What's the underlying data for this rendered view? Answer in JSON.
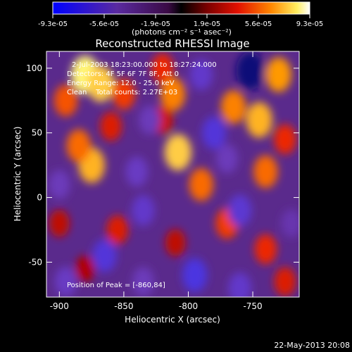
{
  "colorbar": {
    "ticks": [
      "-9.3e-05",
      "-5.6e-05",
      "-1.9e-05",
      "1.9e-05",
      "5.6e-05",
      "9.3e-05"
    ],
    "unit_label": "(photons cm⁻² s⁻¹ asec⁻²)",
    "range": [
      -9.3e-05,
      9.3e-05
    ]
  },
  "chart_data": {
    "type": "heatmap",
    "title": "Reconstructed RHESSI Image",
    "xlabel": "Heliocentric X (arcsec)",
    "ylabel": "Heliocentric Y (arcsec)",
    "xlim": [
      -910,
      -714
    ],
    "ylim": [
      -77,
      113
    ],
    "xticks": [
      -900,
      -850,
      -800,
      -750
    ],
    "yticks": [
      -50,
      0,
      50,
      100
    ],
    "annotations": [
      "2-Jul-2003 18:23:00.000 to 18:27:24.000",
      "Detectors: 4F 5F 6F 7F 8F, Att 0",
      "Energy Range: 12.0 - 25.0 keV",
      "Clean    Total counts: 2.27E+03"
    ],
    "peak_label": "Position of Peak = [-860,84]",
    "peak": [
      -860,
      84
    ],
    "blobs": [
      {
        "x": -880,
        "y": 95,
        "value": 9.3e-05
      },
      {
        "x": -868,
        "y": 88,
        "value": 8.5e-05
      },
      {
        "x": -895,
        "y": 75,
        "value": 6e-05
      },
      {
        "x": -850,
        "y": 80,
        "value": 5.5e-05
      },
      {
        "x": -875,
        "y": 25,
        "value": 8e-05
      },
      {
        "x": -885,
        "y": 40,
        "value": 6.5e-05
      },
      {
        "x": -860,
        "y": 55,
        "value": 4.5e-05
      },
      {
        "x": -820,
        "y": 100,
        "value": 5e-05
      },
      {
        "x": -812,
        "y": 80,
        "value": 7e-05
      },
      {
        "x": -808,
        "y": 35,
        "value": 8.5e-05
      },
      {
        "x": -820,
        "y": 60,
        "value": 4e-05
      },
      {
        "x": -790,
        "y": 10,
        "value": 6.5e-05
      },
      {
        "x": -765,
        "y": 70,
        "value": 7e-05
      },
      {
        "x": -745,
        "y": 60,
        "value": 8e-05
      },
      {
        "x": -730,
        "y": 95,
        "value": 7.5e-05
      },
      {
        "x": -740,
        "y": 20,
        "value": 6.5e-05
      },
      {
        "x": -725,
        "y": 45,
        "value": 5e-05
      },
      {
        "x": -855,
        "y": -25,
        "value": 4.5e-05
      },
      {
        "x": -770,
        "y": -20,
        "value": 5.5e-05
      },
      {
        "x": -740,
        "y": -40,
        "value": 5e-05
      },
      {
        "x": -725,
        "y": -65,
        "value": 4.5e-05
      },
      {
        "x": -900,
        "y": -20,
        "value": 3.5e-05
      },
      {
        "x": -810,
        "y": -35,
        "value": 3.5e-05
      },
      {
        "x": -880,
        "y": -55,
        "value": 3e-05
      },
      {
        "x": -840,
        "y": 20,
        "value": -5e-05
      },
      {
        "x": -830,
        "y": 60,
        "value": -4.5e-05
      },
      {
        "x": -780,
        "y": 50,
        "value": -6.5e-05
      },
      {
        "x": -790,
        "y": 95,
        "value": -5.5e-05
      },
      {
        "x": -752,
        "y": 98,
        "value": -9.3e-05
      },
      {
        "x": -835,
        "y": -10,
        "value": -5.5e-05
      },
      {
        "x": -865,
        "y": -45,
        "value": -6.5e-05
      },
      {
        "x": -795,
        "y": -60,
        "value": -7e-05
      },
      {
        "x": -760,
        "y": -10,
        "value": -6e-05
      },
      {
        "x": -760,
        "y": -70,
        "value": -5.5e-05
      },
      {
        "x": -900,
        "y": 10,
        "value": -4.5e-05
      },
      {
        "x": -895,
        "y": -65,
        "value": -5e-05
      },
      {
        "x": -720,
        "y": -20,
        "value": -4e-05
      },
      {
        "x": -835,
        "y": -65,
        "value": -4.5e-05
      },
      {
        "x": -770,
        "y": 30,
        "value": -4.5e-05
      }
    ]
  },
  "footer": {
    "timestamp": "22-May-2013 20:08"
  }
}
